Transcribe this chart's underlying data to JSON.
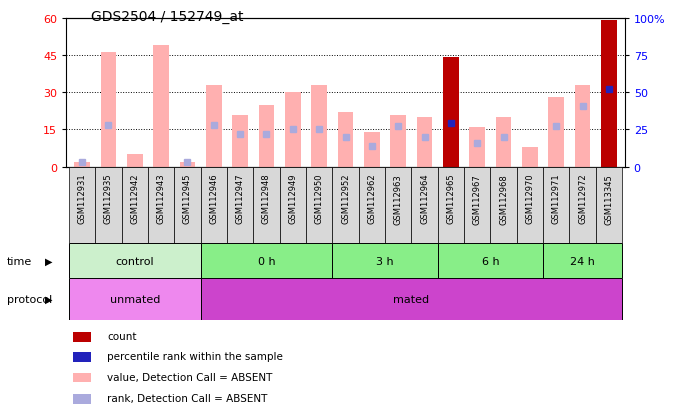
{
  "title": "GDS2504 / 152749_at",
  "samples": [
    "GSM112931",
    "GSM112935",
    "GSM112942",
    "GSM112943",
    "GSM112945",
    "GSM112946",
    "GSM112947",
    "GSM112948",
    "GSM112949",
    "GSM112950",
    "GSM112952",
    "GSM112962",
    "GSM112963",
    "GSM112964",
    "GSM112965",
    "GSM112967",
    "GSM112968",
    "GSM112970",
    "GSM112971",
    "GSM112972",
    "GSM113345"
  ],
  "pink_values": [
    2,
    46,
    5,
    49,
    2,
    33,
    21,
    25,
    30,
    33,
    22,
    14,
    21,
    20,
    44,
    16,
    20,
    8,
    28,
    33,
    59
  ],
  "blue_rank_right": [
    3,
    28,
    null,
    null,
    3,
    28,
    22,
    22,
    25,
    25,
    20,
    14,
    27,
    20,
    29,
    16,
    20,
    null,
    27,
    41,
    52
  ],
  "is_detected": [
    false,
    false,
    false,
    false,
    false,
    false,
    false,
    false,
    false,
    false,
    false,
    false,
    false,
    false,
    true,
    false,
    false,
    false,
    false,
    false,
    true
  ],
  "ylim_left": [
    0,
    60
  ],
  "ylim_right": [
    0,
    100
  ],
  "yticks_left": [
    0,
    15,
    30,
    45,
    60
  ],
  "yticks_right": [
    0,
    25,
    50,
    75,
    100
  ],
  "time_groups": [
    {
      "label": "control",
      "start": 0,
      "end": 4,
      "color": "#ccf0cc"
    },
    {
      "label": "0 h",
      "start": 5,
      "end": 9,
      "color": "#88ee88"
    },
    {
      "label": "3 h",
      "start": 10,
      "end": 13,
      "color": "#88ee88"
    },
    {
      "label": "6 h",
      "start": 14,
      "end": 17,
      "color": "#88ee88"
    },
    {
      "label": "24 h",
      "start": 18,
      "end": 20,
      "color": "#88ee88"
    }
  ],
  "protocol_groups": [
    {
      "label": "unmated",
      "start": 0,
      "end": 4,
      "color": "#ee88ee"
    },
    {
      "label": "mated",
      "start": 5,
      "end": 20,
      "color": "#cc44cc"
    }
  ],
  "pink_color": "#ffb0b0",
  "blue_absent_color": "#aaaadd",
  "red_color": "#bb0000",
  "blue_detected_color": "#2222bb",
  "gray_box_color": "#d8d8d8",
  "legend_labels": [
    "count",
    "percentile rank within the sample",
    "value, Detection Call = ABSENT",
    "rank, Detection Call = ABSENT"
  ],
  "legend_colors": [
    "#bb0000",
    "#2222bb",
    "#ffb0b0",
    "#aaaadd"
  ]
}
